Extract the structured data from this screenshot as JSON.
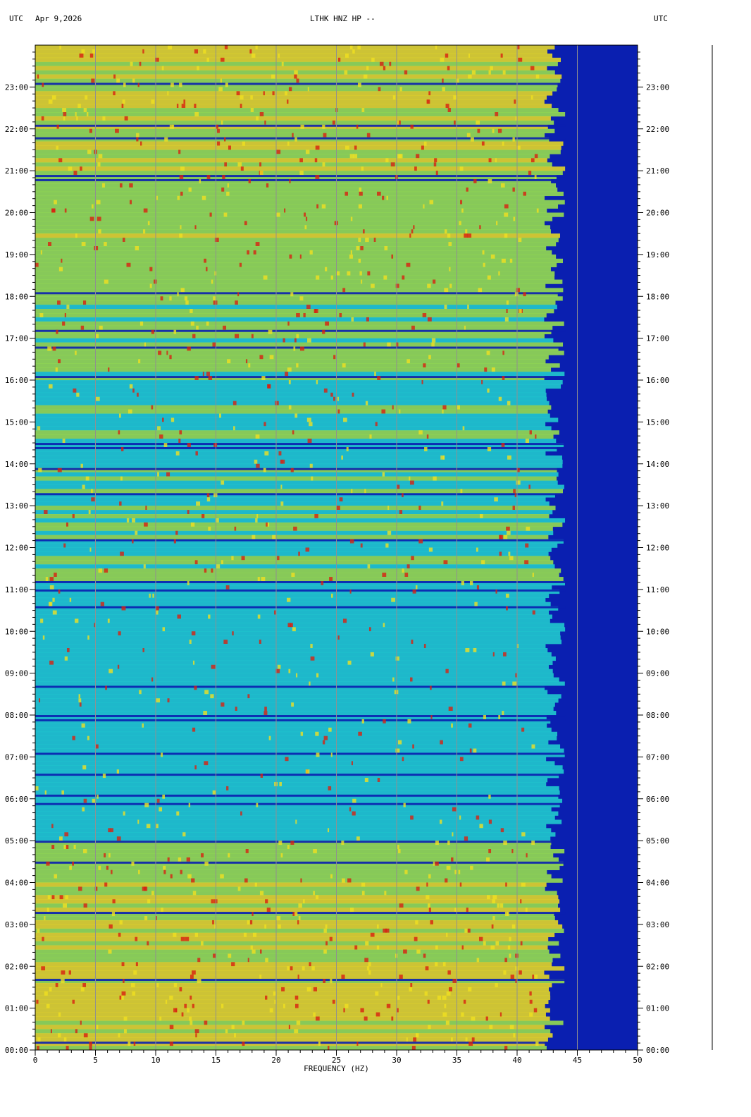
{
  "header": {
    "left_tz": "UTC",
    "date": "Apr 9,2026",
    "station": "LTHK HNZ HP --",
    "right_tz": "UTC"
  },
  "colors": {
    "low": "#0a1fb0",
    "mid_low": "#1a6fe0",
    "mid": "#22d4d0",
    "mid_high": "#9ee84a",
    "high": "#f0e020",
    "peak": "#d82010",
    "grid": "#909090"
  },
  "chart_data": {
    "type": "heatmap",
    "xlabel": "FREQUENCY (HZ)",
    "xlim": [
      0,
      50
    ],
    "x_ticks": [
      0,
      5,
      10,
      15,
      20,
      25,
      30,
      35,
      40,
      45,
      50
    ],
    "x_tick_labels": [
      "0",
      "5",
      "10",
      "15",
      "20",
      "25",
      "30",
      "35",
      "40",
      "45",
      "50"
    ],
    "ylim_hours": [
      0,
      24
    ],
    "y_ticks_hours": [
      0,
      1,
      2,
      3,
      4,
      5,
      6,
      7,
      8,
      9,
      10,
      11,
      12,
      13,
      14,
      15,
      16,
      17,
      18,
      19,
      20,
      21,
      22,
      23
    ],
    "y_tick_labels": [
      "00:00",
      "01:00",
      "02:00",
      "03:00",
      "04:00",
      "05:00",
      "06:00",
      "07:00",
      "08:00",
      "09:00",
      "10:00",
      "11:00",
      "12:00",
      "13:00",
      "14:00",
      "15:00",
      "16:00",
      "17:00",
      "18:00",
      "19:00",
      "20:00",
      "21:00",
      "22:00",
      "23:00"
    ],
    "grid": true,
    "energy_cutoff_hz": 44,
    "activity_by_hour": [
      0.85,
      0.85,
      0.85,
      0.8,
      0.75,
      0.45,
      0.35,
      0.4,
      0.4,
      0.4,
      0.45,
      0.55,
      0.55,
      0.5,
      0.5,
      0.5,
      0.6,
      0.6,
      0.65,
      0.7,
      0.65,
      0.75,
      0.8,
      0.75
    ]
  }
}
